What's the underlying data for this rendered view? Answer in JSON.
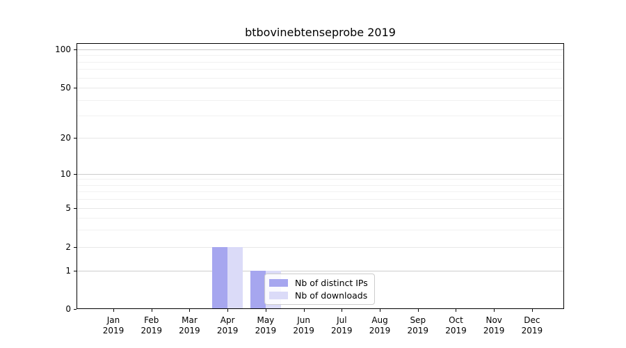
{
  "chart_data": {
    "type": "bar",
    "title": "btbovinebtenseprobe 2019",
    "x_year": "2019",
    "categories": [
      "Jan",
      "Feb",
      "Mar",
      "Apr",
      "May",
      "Jun",
      "Jul",
      "Aug",
      "Sep",
      "Oct",
      "Nov",
      "Dec"
    ],
    "series": [
      {
        "name": "Nb of distinct IPs",
        "color": "#a6a6ef",
        "values": [
          0,
          0,
          0,
          2,
          1,
          0,
          0,
          0,
          0,
          0,
          0,
          0
        ]
      },
      {
        "name": "Nb of downloads",
        "color": "#dbdbf8",
        "values": [
          0,
          0,
          0,
          2,
          1,
          0,
          0,
          0,
          0,
          0,
          0,
          0
        ]
      }
    ],
    "yticks": [
      0,
      1,
      2,
      5,
      10,
      20,
      50,
      100
    ],
    "ylim": [
      0,
      110
    ],
    "yscale": "symlog",
    "grid": "horizontal",
    "legend_position": "lower-center",
    "colors": {
      "axis": "#000000",
      "grid_major": "#cccccc",
      "grid_minor": "#f1f1f1",
      "legend_border": "#cccccc"
    }
  }
}
